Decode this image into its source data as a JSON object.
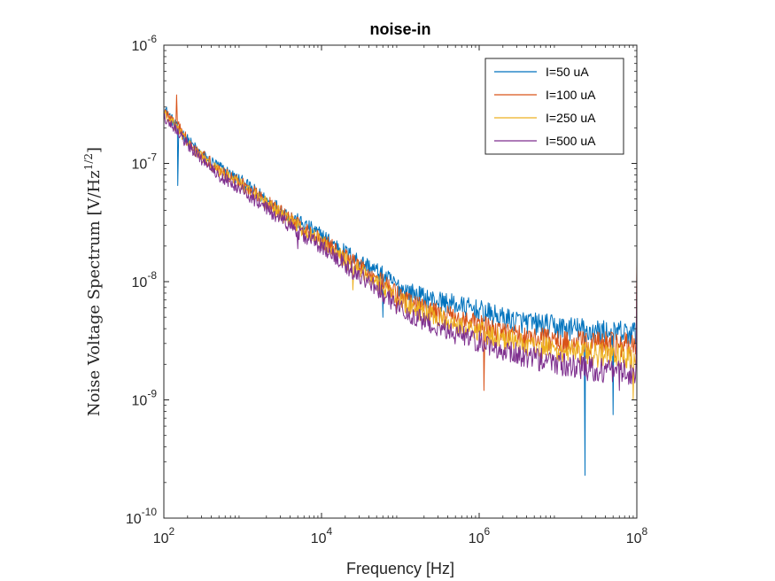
{
  "chart_data": {
    "type": "line",
    "title": "noise-in",
    "xlabel": "Frequency [Hz]",
    "ylabel_main": "Noise Voltage Spectrum [V/Hz",
    "ylabel_exp": "1/2",
    "ylabel_close": "]",
    "x_scale": "log",
    "y_scale": "log",
    "xlim": [
      100,
      100000000
    ],
    "ylim": [
      1e-10,
      1e-06
    ],
    "xticks": [
      {
        "value": 100,
        "base": "10",
        "exp": "2"
      },
      {
        "value": 10000,
        "base": "10",
        "exp": "4"
      },
      {
        "value": 1000000,
        "base": "10",
        "exp": "6"
      },
      {
        "value": 100000000,
        "base": "10",
        "exp": "8"
      }
    ],
    "yticks": [
      {
        "value": 1e-10,
        "base": "10",
        "exp": "-10"
      },
      {
        "value": 1e-09,
        "base": "10",
        "exp": "-9"
      },
      {
        "value": 1e-08,
        "base": "10",
        "exp": "-8"
      },
      {
        "value": 1e-07,
        "base": "10",
        "exp": "-7"
      },
      {
        "value": 1e-06,
        "base": "10",
        "exp": "-6"
      }
    ],
    "grid": false,
    "legend_position": "top-right",
    "series": [
      {
        "name": "I=50 uA",
        "color": "#0072BD",
        "x": [
          100,
          150,
          200,
          300,
          500,
          1000,
          2000,
          5000,
          10000,
          20000,
          50000,
          100000,
          200000,
          500000,
          1000000,
          2000000,
          5000000,
          10000000,
          20000000,
          50000000,
          100000000
        ],
        "y": [
          3e-07,
          2e-07,
          1.6e-07,
          1.2e-07,
          9.5e-08,
          7e-08,
          5e-08,
          3.3e-08,
          2.5e-08,
          1.8e-08,
          1.25e-08,
          9e-09,
          7.5e-09,
          6.5e-09,
          5.8e-09,
          5e-09,
          4.5e-09,
          4.2e-09,
          4e-09,
          3.8e-09,
          3.7e-09
        ],
        "dips": [
          {
            "x": 150,
            "y": 6.5e-08
          },
          {
            "x": 60000,
            "y": 5e-09
          },
          {
            "x": 22000000,
            "y": 2.3e-10
          },
          {
            "x": 50000000,
            "y": 7.5e-10
          }
        ],
        "spikes": []
      },
      {
        "name": "I=100 uA",
        "color": "#D95319",
        "x": [
          100,
          150,
          200,
          300,
          500,
          1000,
          2000,
          5000,
          10000,
          20000,
          50000,
          100000,
          200000,
          500000,
          1000000,
          2000000,
          5000000,
          10000000,
          20000000,
          50000000,
          100000000
        ],
        "y": [
          2.8e-07,
          2.1e-07,
          1.6e-07,
          1.2e-07,
          9e-08,
          6.8e-08,
          4.8e-08,
          3.1e-08,
          2.3e-08,
          1.65e-08,
          1.1e-08,
          7.5e-09,
          6e-09,
          5e-09,
          4.4e-09,
          3.8e-09,
          3.4e-09,
          3.2e-09,
          3.1e-09,
          3e-09,
          2.9e-09
        ],
        "dips": [
          {
            "x": 90000,
            "y": 5.5e-09
          },
          {
            "x": 1150000,
            "y": 1.2e-09
          }
        ],
        "spikes": [
          {
            "x": 145,
            "y": 3.8e-07
          },
          {
            "x": 100000000,
            "y": 1.5e-08
          }
        ]
      },
      {
        "name": "I=250 uA",
        "color": "#EDB120",
        "x": [
          100,
          150,
          200,
          300,
          500,
          1000,
          2000,
          5000,
          10000,
          20000,
          50000,
          100000,
          200000,
          500000,
          1000000,
          2000000,
          5000000,
          10000000,
          20000000,
          50000000,
          100000000
        ],
        "y": [
          2.6e-07,
          2e-07,
          1.5e-07,
          1.15e-07,
          8.6e-08,
          6.5e-08,
          4.6e-08,
          3e-08,
          2.2e-08,
          1.55e-08,
          1e-08,
          7e-09,
          5.5e-09,
          4.5e-09,
          3.9e-09,
          3.3e-09,
          2.9e-09,
          2.7e-09,
          2.5e-09,
          2.4e-09,
          2.3e-09
        ],
        "dips": [
          {
            "x": 25000,
            "y": 8.5e-09
          },
          {
            "x": 90000000,
            "y": 1e-09
          }
        ],
        "spikes": []
      },
      {
        "name": "I=500 uA",
        "color": "#7E2F8E",
        "x": [
          100,
          150,
          200,
          300,
          500,
          1000,
          2000,
          5000,
          10000,
          20000,
          50000,
          100000,
          200000,
          500000,
          1000000,
          2000000,
          5000000,
          10000000,
          20000000,
          50000000,
          100000000
        ],
        "y": [
          2.5e-07,
          1.9e-07,
          1.45e-07,
          1.1e-07,
          8e-08,
          6e-08,
          4.2e-08,
          2.7e-08,
          2e-08,
          1.4e-08,
          9e-09,
          6e-09,
          4.7e-09,
          3.7e-09,
          3.2e-09,
          2.7e-09,
          2.3e-09,
          2.1e-09,
          1.9e-09,
          1.8e-09,
          1.7e-09
        ],
        "dips": [
          {
            "x": 5000,
            "y": 1.9e-08
          },
          {
            "x": 60000000,
            "y": 1.2e-09
          }
        ],
        "spikes": [
          {
            "x": 100000000,
            "y": 1.2e-08
          }
        ]
      }
    ]
  }
}
